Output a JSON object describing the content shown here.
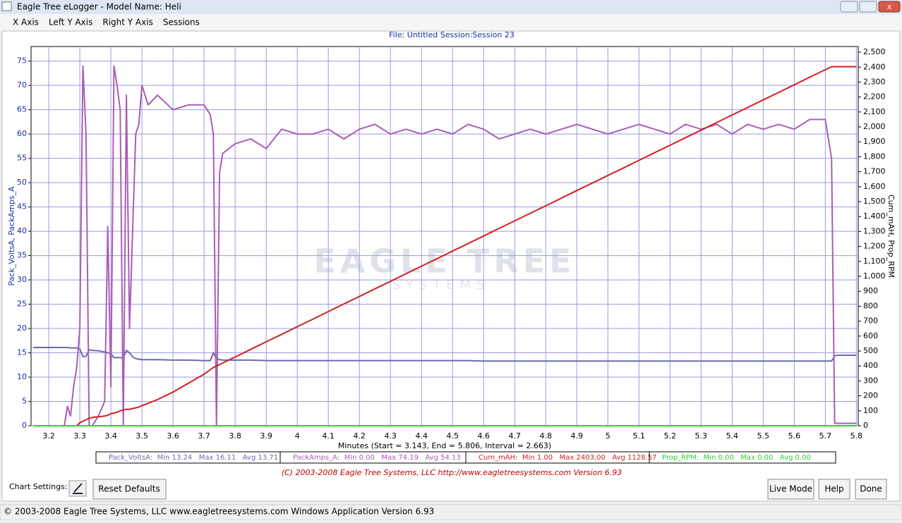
{
  "window": {
    "title": "Eagle Tree eLogger - Model Name: Heli",
    "menu": [
      "X Axis",
      "Left Y Axis",
      "Right Y Axis",
      "Sessions"
    ],
    "chart_settings": "Chart Settings:",
    "reset": "Reset Defaults",
    "buttons": [
      "Live Mode",
      "Help",
      "Done"
    ],
    "copyright": "(C) 2003-2008 Eagle Tree Systems, LLC     http://www.eagletreesystems.com     Version 6.93",
    "status": "© 2003-2008 Eagle Tree Systems, LLC     www.eagletreesystems.com     Windows Application Version 6.93"
  },
  "chart_data": {
    "type": "line",
    "title": "File: Untitled   Session:Session 23",
    "xlabel": "Minutes (Start = 3.143,  End = 5.806,  Interval =  2.663)",
    "ylabel": "Pack_VoltsA, PackAmps_A",
    "y2label": "Cum_mAH, Prop_RPM",
    "watermark": [
      "EAGLE TREE",
      "SYSTEMS"
    ],
    "grid": true,
    "xlim": [
      3.143,
      5.806
    ],
    "ylim": [
      0,
      78
    ],
    "y2lim": [
      0,
      2538
    ],
    "xticks": [
      3.2,
      3.3,
      3.4,
      3.5,
      3.6,
      3.7,
      3.8,
      3.9,
      4,
      4.1,
      4.2,
      4.3,
      4.4,
      4.5,
      4.6,
      4.7,
      4.8,
      4.9,
      5,
      5.1,
      5.2,
      5.3,
      5.4,
      5.5,
      5.6,
      5.7,
      5.8
    ],
    "yticks": [
      0,
      5,
      10,
      15,
      20,
      25,
      30,
      35,
      40,
      45,
      50,
      55,
      60,
      65,
      70,
      75
    ],
    "y2ticks": [
      0,
      100,
      200,
      300,
      400,
      500,
      600,
      700,
      800,
      900,
      {
        "value": 1000,
        "label": "1,000"
      },
      {
        "value": 1100,
        "label": "1,100"
      },
      {
        "value": 1200,
        "label": "1,200"
      },
      {
        "value": 1300,
        "label": "1,300"
      },
      {
        "value": 1400,
        "label": "1,400"
      },
      {
        "value": 1500,
        "label": "1,500"
      },
      {
        "value": 1600,
        "label": "1,600"
      },
      {
        "value": 1700,
        "label": "1,700"
      },
      {
        "value": 1800,
        "label": "1,800"
      },
      {
        "value": 1900,
        "label": "1,900"
      },
      {
        "value": 2000,
        "label": "2,000"
      },
      {
        "value": 2100,
        "label": "2,100"
      },
      {
        "value": 2200,
        "label": "2,200"
      },
      {
        "value": 2300,
        "label": "2,300"
      },
      {
        "value": 2400,
        "label": "2,400"
      },
      {
        "value": 2500,
        "label": "2,500"
      }
    ],
    "x": [
      3.15,
      3.2,
      3.25,
      3.26,
      3.27,
      3.28,
      3.29,
      3.3,
      3.31,
      3.32,
      3.33,
      3.34,
      3.36,
      3.38,
      3.39,
      3.4,
      3.41,
      3.42,
      3.43,
      3.44,
      3.45,
      3.46,
      3.47,
      3.48,
      3.49,
      3.5,
      3.52,
      3.55,
      3.6,
      3.65,
      3.7,
      3.72,
      3.73,
      3.74,
      3.75,
      3.76,
      3.8,
      3.85,
      3.9,
      3.95,
      4.0,
      4.05,
      4.1,
      4.15,
      4.2,
      4.25,
      4.3,
      4.35,
      4.4,
      4.45,
      4.5,
      4.55,
      4.6,
      4.65,
      4.7,
      4.75,
      4.8,
      4.85,
      4.9,
      4.95,
      5.0,
      5.05,
      5.1,
      5.15,
      5.2,
      5.25,
      5.3,
      5.35,
      5.4,
      5.45,
      5.5,
      5.55,
      5.6,
      5.65,
      5.7,
      5.72,
      5.73,
      5.74,
      5.8
    ],
    "series": [
      {
        "name": "Pack_VoltsA",
        "stats": ":  Min 13.24   Max 16.11   Avg 13.71",
        "color": "#6b6bab",
        "values": [
          16.1,
          16.1,
          16.1,
          16.1,
          16,
          16,
          16,
          15.8,
          14.2,
          14.3,
          15.6,
          15.5,
          15.4,
          15.2,
          15,
          14.8,
          14,
          14,
          14,
          14,
          15.5,
          15,
          14.2,
          13.8,
          13.7,
          13.6,
          13.6,
          13.6,
          13.5,
          13.5,
          13.4,
          13.4,
          15,
          13.8,
          13.6,
          13.5,
          13.5,
          13.5,
          13.4,
          13.4,
          13.4,
          13.4,
          13.4,
          13.4,
          13.4,
          13.4,
          13.4,
          13.4,
          13.4,
          13.4,
          13.4,
          13.4,
          13.3,
          13.3,
          13.3,
          13.3,
          13.3,
          13.3,
          13.3,
          13.3,
          13.3,
          13.3,
          13.3,
          13.3,
          13.3,
          13.3,
          13.3,
          13.3,
          13.3,
          13.3,
          13.3,
          13.3,
          13.3,
          13.3,
          13.3,
          13.3,
          14.4,
          14.5,
          14.5
        ]
      },
      {
        "name": "PackAmps_A",
        "stats": ":  Min 0.00   Max 74.19   Avg 54.13",
        "color": "#aa5db5",
        "values": [
          0,
          0,
          0,
          4,
          2,
          8,
          12,
          20,
          74,
          60,
          0,
          0,
          2,
          5,
          41,
          8,
          74,
          70,
          65,
          0,
          68,
          20,
          40,
          60,
          62,
          70,
          66,
          68,
          65,
          66,
          66,
          64,
          60,
          0,
          52,
          56,
          58,
          59,
          57,
          61,
          60,
          60,
          61,
          59,
          61,
          62,
          60,
          61,
          60,
          61,
          60,
          62,
          61,
          59,
          60,
          61,
          60,
          61,
          62,
          61,
          60,
          61,
          62,
          61,
          60,
          62,
          61,
          62,
          60,
          62,
          61,
          62,
          61,
          63,
          63,
          55,
          0.5,
          0.5,
          0.5
        ]
      },
      {
        "name": "Cum_mAH",
        "stats": ":  Min 1.00   Max 2403.00   Avg 1128.57",
        "color": "#d42020",
        "axis": "y2",
        "values": [
          0,
          0,
          0,
          0,
          0,
          0,
          0,
          20,
          30,
          40,
          50,
          55,
          60,
          65,
          70,
          80,
          85,
          90,
          100,
          105,
          110,
          110,
          115,
          120,
          125,
          135,
          150,
          175,
          225,
          285,
          345,
          375,
          390,
          400,
          410,
          420,
          460,
          511,
          562,
          612,
          663,
          713,
          764,
          815,
          865,
          916,
          966,
          1017,
          1068,
          1118,
          1169,
          1219,
          1270,
          1321,
          1371,
          1422,
          1472,
          1523,
          1574,
          1624,
          1675,
          1725,
          1776,
          1827,
          1877,
          1928,
          1978,
          2029,
          2080,
          2130,
          2181,
          2231,
          2282,
          2333,
          2383,
          2403,
          2403,
          2403,
          2403
        ]
      },
      {
        "name": "Prop_RPM",
        "stats": ":  Min 0.00   Max 0.00   Avg 0.00",
        "color": "#33cc33",
        "axis": "y2",
        "values": [
          0,
          0,
          0,
          0,
          0,
          0,
          0,
          0,
          0,
          0,
          0,
          0,
          0,
          0,
          0,
          0,
          0,
          0,
          0,
          0,
          0,
          0,
          0,
          0,
          0,
          0,
          0,
          0,
          0,
          0,
          0,
          0,
          0,
          0,
          0,
          0,
          0,
          0,
          0,
          0,
          0,
          0,
          0,
          0,
          0,
          0,
          0,
          0,
          0,
          0,
          0,
          0,
          0,
          0,
          0,
          0,
          0,
          0,
          0,
          0,
          0,
          0,
          0,
          0,
          0,
          0,
          0,
          0,
          0,
          0,
          0,
          0,
          0,
          0,
          0,
          0,
          0,
          0,
          0
        ]
      }
    ]
  }
}
